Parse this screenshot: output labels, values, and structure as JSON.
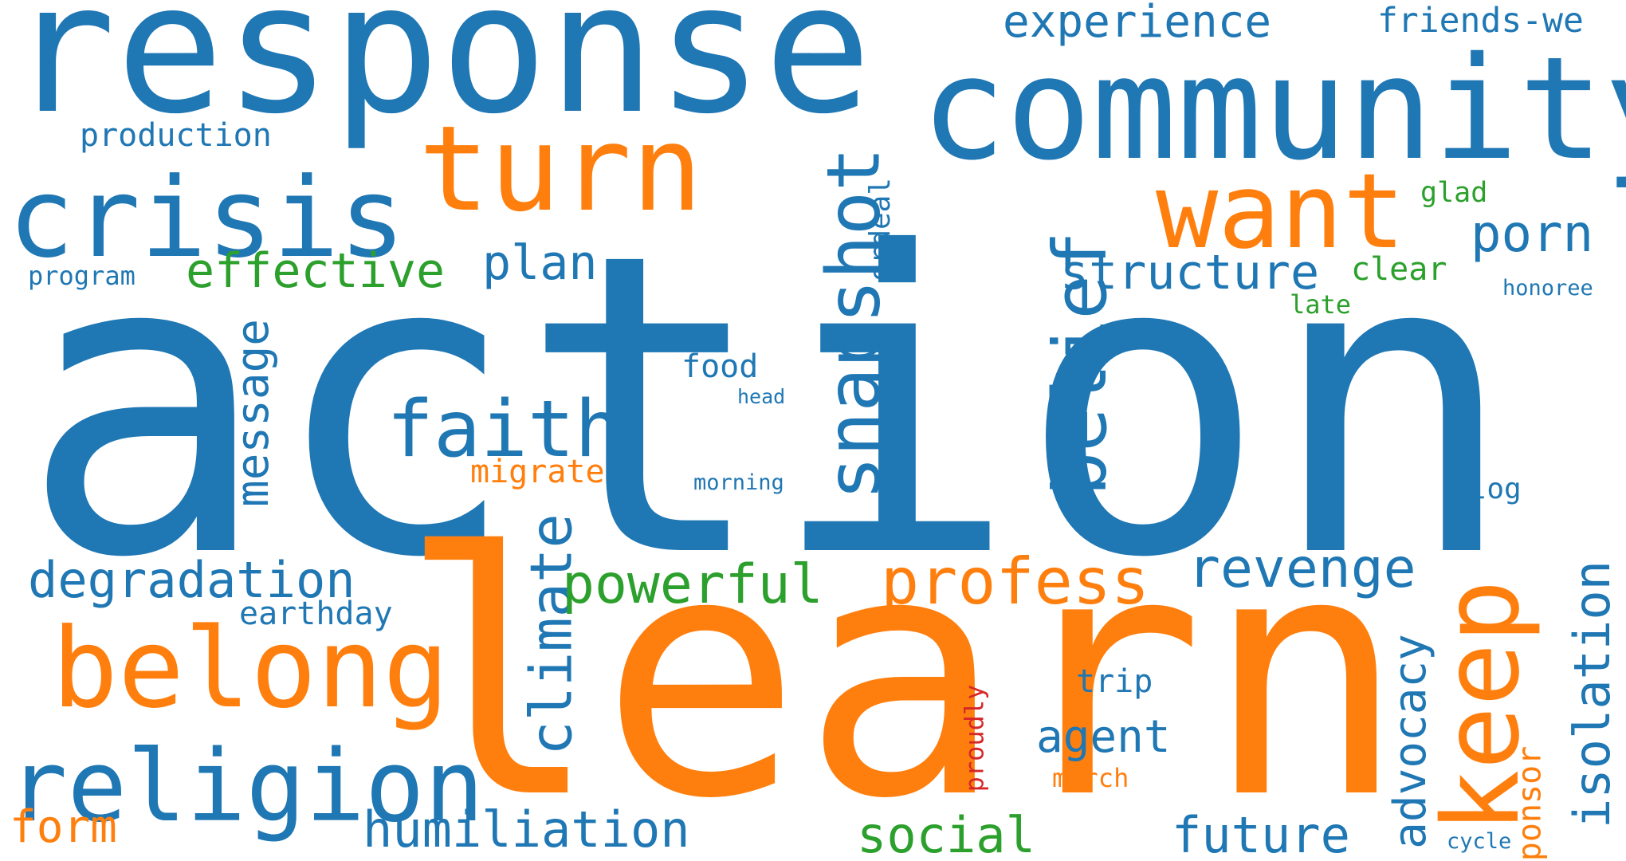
{
  "palette": {
    "blue": "#1f77b4",
    "orange": "#ff7f0e",
    "green": "#2ca02c",
    "red": "#d62728"
  },
  "words": {
    "action": "action",
    "learn": "learn",
    "response": "response",
    "community": "community",
    "turn": "turn",
    "crisis": "crisis",
    "want": "want",
    "belong": "belong",
    "religion": "religion",
    "keep": "keep",
    "faith": "faith",
    "snapshot": "snapshot",
    "belief": "belief",
    "profess": "profess",
    "climate": "climate",
    "revenge": "revenge",
    "powerful": "powerful",
    "degradation": "degradation",
    "humiliation": "humiliation",
    "future": "future",
    "isolation": "isolation",
    "social": "social",
    "message": "message",
    "effective": "effective",
    "structure": "structure",
    "plan": "plan",
    "porn": "porn",
    "experience": "experience",
    "friends_we": "friends-we",
    "advocacy": "advocacy",
    "agent": "agent",
    "form": "form",
    "production": "production",
    "earthday": "earthday",
    "sponsor": "sponsor",
    "migrate": "migrate",
    "food": "food",
    "trip": "trip",
    "ordeal": "ordeal",
    "clear": "clear",
    "glad": "glad",
    "late": "late",
    "program": "program",
    "blog": "blog",
    "march": "march",
    "proudly": "proudly",
    "honoree": "honoree",
    "head": "head",
    "morning": "morning",
    "cycle": "cycle"
  }
}
